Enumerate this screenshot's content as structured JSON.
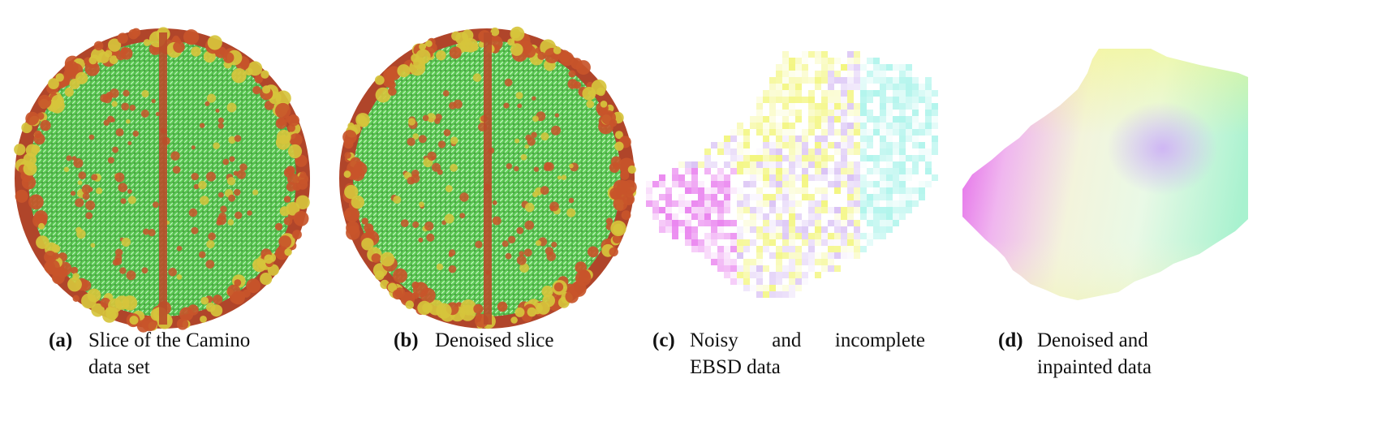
{
  "figure": {
    "panels": [
      {
        "id": "a",
        "label": "(a)",
        "caption_lines": [
          "Slice of the Camino",
          "data set"
        ]
      },
      {
        "id": "b",
        "label": "(b)",
        "caption_lines": [
          "Denoised slice"
        ]
      },
      {
        "id": "c",
        "label": "(c)",
        "caption_lines": [
          "Noisy and incomplete",
          "EBSD data"
        ]
      },
      {
        "id": "d",
        "label": "(d)",
        "caption_lines": [
          "Denoised and",
          "inpainted data"
        ]
      }
    ],
    "colors": {
      "brain_fiber": "#5fd45a",
      "brain_ellipsoid": "#c8552a",
      "brain_highlight": "#d6c43c",
      "ebsd_magenta": "#e04ee8",
      "ebsd_yellow": "#eef24a",
      "ebsd_cyan": "#8ff0e4",
      "ebsd_lavender": "#c9a8f0"
    }
  }
}
